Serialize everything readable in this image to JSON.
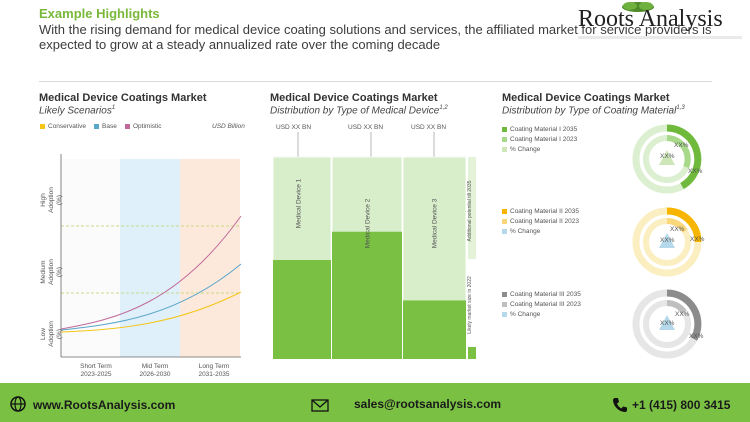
{
  "header": {
    "section_title": "Example Highlights",
    "description": "With the rising demand for medical device coating solutions and services, the affiliated market for service providers is expected to grow at a steady annualized rate over the coming decade",
    "logo_text": "Roots Analysis"
  },
  "colors": {
    "accent_green": "#79b83a",
    "footer_green": "#7ac143",
    "conservative": "#f5c518",
    "base": "#5aa7c9",
    "optimistic": "#c06a9a"
  },
  "panel1": {
    "title": "Medical Device Coatings Market",
    "subtitle": "Likely Scenarios",
    "subtitle_sup": "1",
    "legend": [
      "Conservative",
      "Base",
      "Optimistic"
    ],
    "unit": "USD Billion",
    "y_labels": {
      "high": [
        "High",
        "Adoption (%)"
      ],
      "medium": [
        "Medium",
        "Adoption (%)"
      ],
      "low": [
        "Low",
        "Adoption (%)"
      ]
    },
    "x_labels": [
      {
        "term": "Short Term",
        "years": "2023-2025"
      },
      {
        "term": "Mid Term",
        "years": "2026-2030"
      },
      {
        "term": "Long Term",
        "years": "2031-2035"
      }
    ]
  },
  "panel2": {
    "title": "Medical Device Coatings Market",
    "subtitle": "Distribution by Type of Medical Device",
    "subtitle_sup": "1,2",
    "usd_labels": [
      "USD XX BN",
      "USD XX BN",
      "USD XX BN"
    ],
    "devices": [
      {
        "label": "Medical Device 1",
        "level": 0.51
      },
      {
        "label": "Medical Device 2",
        "level": 0.37
      },
      {
        "label": "Medical Device 3",
        "level": 0.71
      }
    ],
    "side_labels": {
      "potential": "Additional potential till 2035",
      "size": "Likely market size in 2022"
    }
  },
  "panel3": {
    "title": "Medical Device Coatings Market",
    "subtitle": "Distribution by Type of Coating Material",
    "subtitle_sup": "1,3",
    "groups": [
      {
        "legend": [
          "Coating Material I 2035",
          "Coating Material I 2023",
          "% Change"
        ],
        "colors": [
          "#6fba3d",
          "#a8d88a",
          "#cde7b8"
        ],
        "labels": [
          "XX%",
          "XX%",
          "XX%"
        ]
      },
      {
        "legend": [
          "Coating Material II 2035",
          "Coating Material II 2023",
          "% Change"
        ],
        "colors": [
          "#f7b500",
          "#f9d77a",
          "#b5d9ea"
        ],
        "labels": [
          "XX%",
          "XX%",
          "XX%"
        ]
      },
      {
        "legend": [
          "Coating Material III 2035",
          "Coating Material III 2023",
          "% Change"
        ],
        "colors": [
          "#8c8c8c",
          "#bfbfbf",
          "#b5d9ea"
        ],
        "labels": [
          "XX%",
          "XX%",
          "XX%"
        ]
      }
    ]
  },
  "footer": {
    "website": "www.RootsAnalysis.com",
    "email": "sales@rootsanalysis.com",
    "phone": "+1 (415) 800 3415"
  }
}
